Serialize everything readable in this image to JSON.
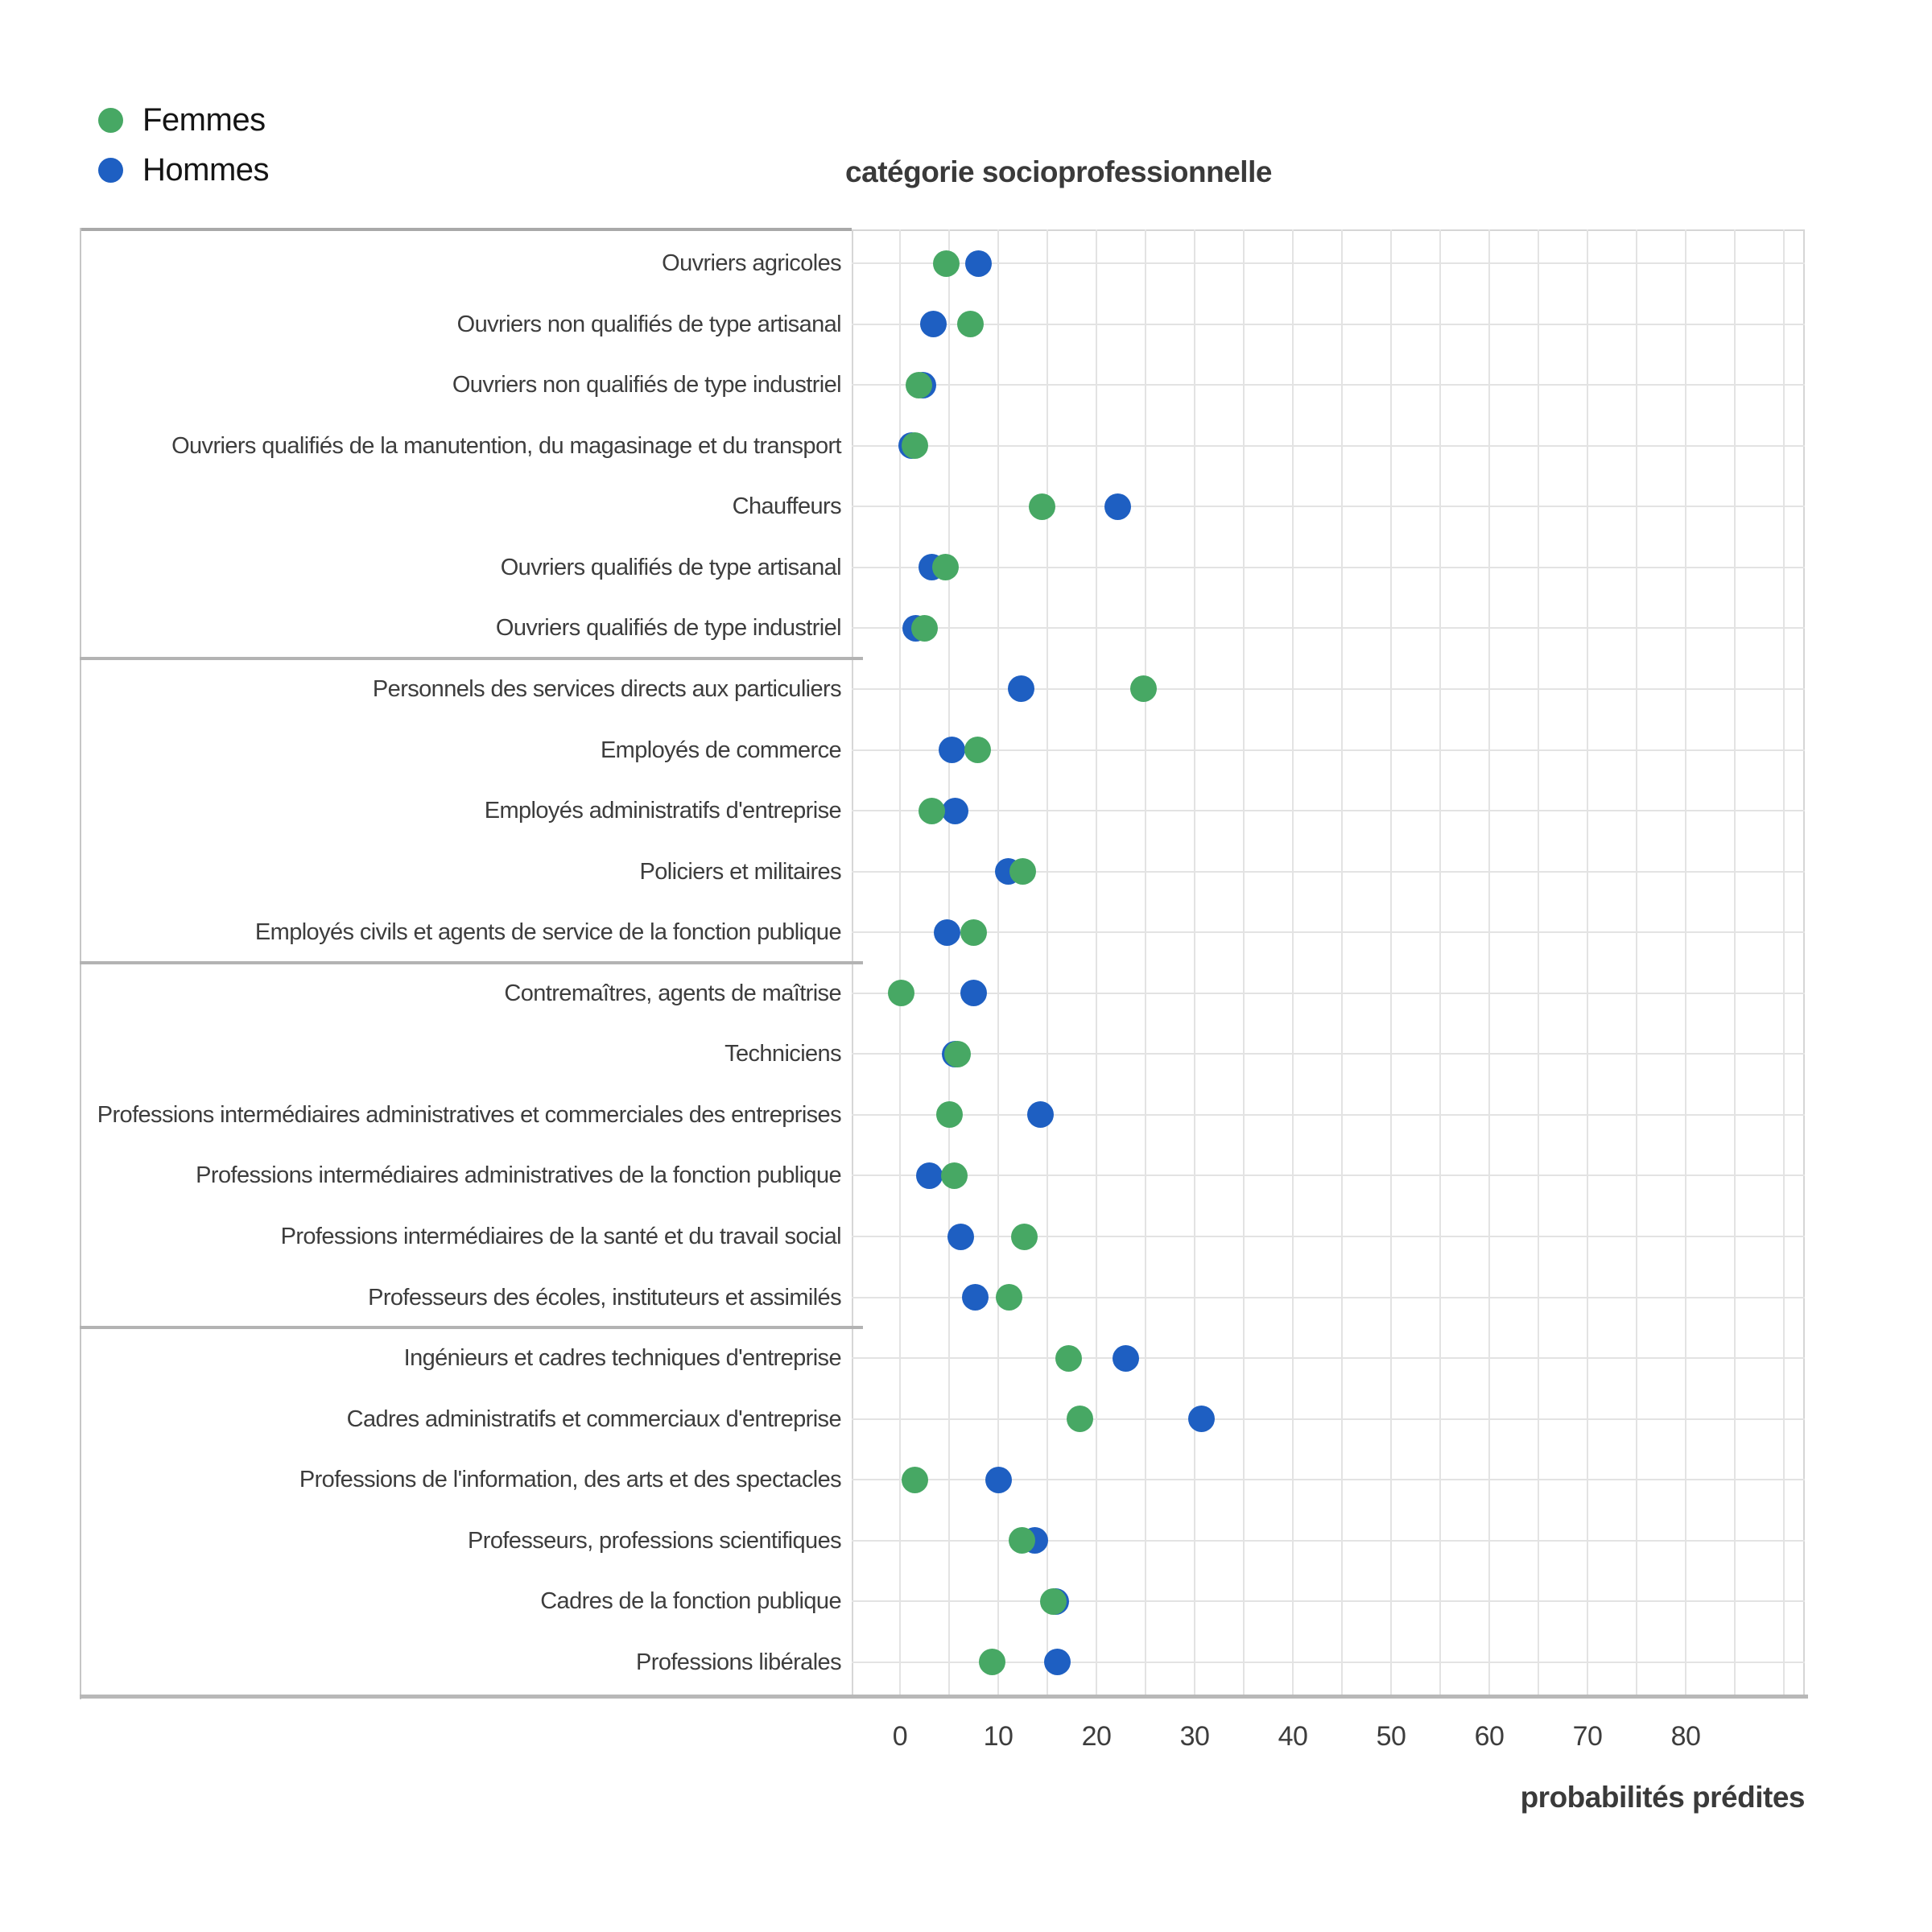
{
  "title": "catégorie socioprofessionnelle",
  "x_axis_title": "probabilités prédites",
  "colors": {
    "femmes": "#47a864",
    "hommes": "#1e5fc2",
    "gridline": "#e3e3e3",
    "panel_border": "#d6d6d6",
    "divider": "#b3b3b3",
    "text": "#3d3d3d"
  },
  "legend": {
    "position": "top-left",
    "items": [
      {
        "label": "Femmes",
        "color": "#47a864"
      },
      {
        "label": "Hommes",
        "color": "#1e5fc2"
      }
    ]
  },
  "chart_data": {
    "type": "scatter",
    "subtype": "horizontal-dot-plot",
    "title": "catégorie socioprofessionnelle",
    "xlabel": "probabilités prédites",
    "ylabel": "",
    "x_ticks": [
      0,
      10,
      20,
      30,
      40,
      50,
      60,
      70,
      80
    ],
    "x_gridline_step": 5,
    "x_gridline_max": 90,
    "xlim": [
      -5,
      92
    ],
    "grid": true,
    "legend_position": "top-left",
    "categories": [
      "Ouvriers agricoles",
      "Ouvriers non qualifiés de type artisanal",
      "Ouvriers non qualifiés de type industriel",
      "Ouvriers qualifiés de la manutention, du magasinage et du transport",
      "Chauffeurs",
      "Ouvriers qualifiés de type artisanal",
      "Ouvriers qualifiés de type industriel",
      "Personnels des services directs aux particuliers",
      "Employés de commerce",
      "Employés administratifs d'entreprise",
      "Policiers et militaires",
      "Employés civils et agents de service de la fonction publique",
      "Contremaîtres, agents de maîtrise",
      "Techniciens",
      "Professions intermédiaires administratives et commerciales des entreprises",
      "Professions intermédiaires administratives de la fonction publique",
      "Professions intermédiaires de la santé et du travail social",
      "Professeurs des écoles, instituteurs et assimilés",
      "Ingénieurs et cadres techniques d'entreprise",
      "Cadres administratifs et commerciaux d'entreprise",
      "Professions de l'information, des arts et des spectacles",
      "Professeurs, professions scientifiques",
      "Cadres de la fonction publique",
      "Professions libérales"
    ],
    "group_dividers_after": [
      6,
      11,
      17
    ],
    "series": [
      {
        "name": "Femmes",
        "color": "#47a864",
        "values": [
          4.7,
          7.2,
          1.9,
          1.5,
          14.5,
          4.6,
          2.5,
          24.8,
          7.9,
          3.2,
          12.5,
          7.5,
          0.1,
          5.9,
          5.0,
          5.5,
          12.7,
          11.1,
          17.2,
          18.3,
          1.5,
          12.4,
          15.6,
          9.4
        ]
      },
      {
        "name": "Hommes",
        "color": "#1e5fc2",
        "values": [
          8.0,
          3.4,
          2.3,
          1.2,
          22.2,
          3.2,
          1.6,
          12.3,
          5.3,
          5.6,
          11.0,
          4.8,
          7.5,
          5.6,
          14.3,
          3.0,
          6.2,
          7.7,
          23.0,
          30.7,
          10.0,
          13.7,
          15.9,
          16.0
        ]
      }
    ]
  }
}
